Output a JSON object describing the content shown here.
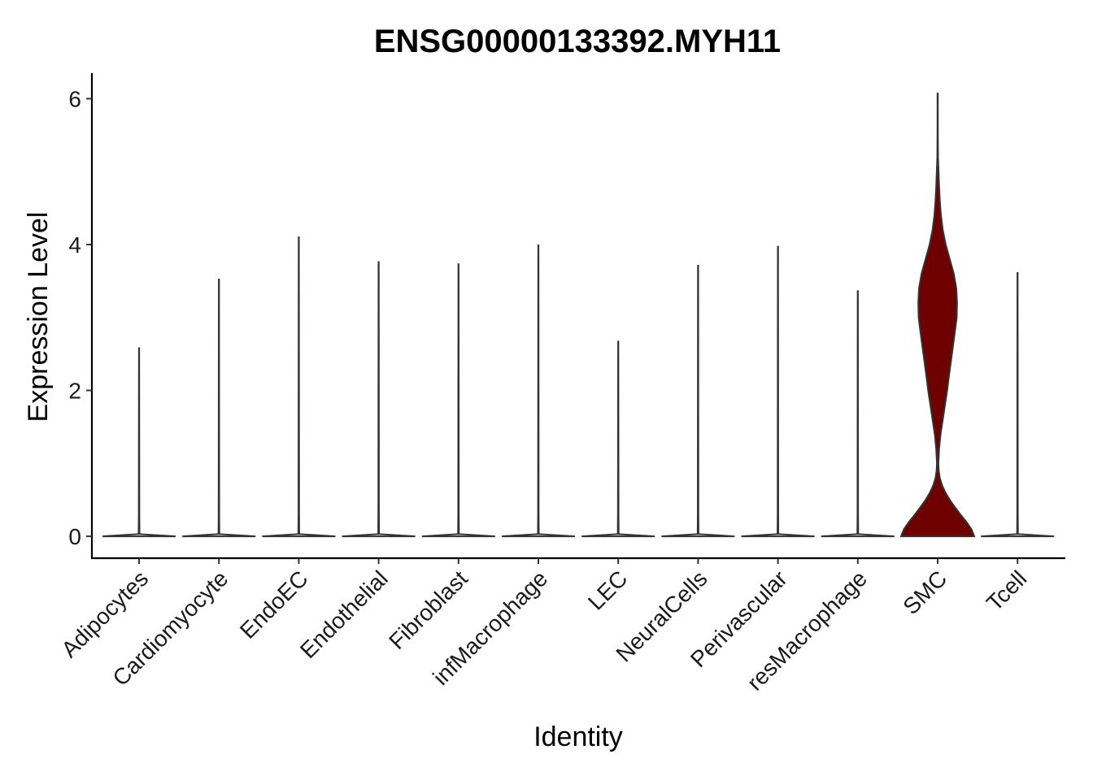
{
  "chart_data": {
    "type": "violin",
    "title": "ENSG00000133392.MYH11",
    "xlabel": "Identity",
    "ylabel": "Expression Level",
    "ylim": [
      -0.3,
      6.35
    ],
    "yticks": [
      0,
      2,
      4,
      6
    ],
    "grid": false,
    "legend": "none",
    "categories": [
      "Adipocytes",
      "Cardiomyocyte",
      "EndoEC",
      "Endothelial",
      "Fibroblast",
      "infMacrophage",
      "LEC",
      "NeuralCells",
      "Perivascular",
      "resMacrophage",
      "SMC",
      "Tcell"
    ],
    "max_values": [
      2.58,
      3.52,
      4.1,
      3.76,
      3.73,
      3.99,
      2.67,
      3.71,
      3.97,
      3.36,
      6.07,
      3.61
    ],
    "fill_colors": [
      "#ffffff",
      "#ffffff",
      "#ffffff",
      "#ffffff",
      "#ffffff",
      "#ffffff",
      "#ffffff",
      "#ffffff",
      "#ffffff",
      "#ffffff",
      "#6e0000",
      "#ffffff"
    ],
    "smc_density_profile": [
      [
        0.0,
        1.0
      ],
      [
        0.1,
        0.92
      ],
      [
        0.2,
        0.78
      ],
      [
        0.3,
        0.62
      ],
      [
        0.4,
        0.47
      ],
      [
        0.5,
        0.33
      ],
      [
        0.6,
        0.21
      ],
      [
        0.7,
        0.12
      ],
      [
        0.8,
        0.06
      ],
      [
        0.9,
        0.03
      ],
      [
        1.0,
        0.02
      ],
      [
        1.2,
        0.04
      ],
      [
        1.4,
        0.08
      ],
      [
        1.6,
        0.14
      ],
      [
        1.8,
        0.2
      ],
      [
        2.0,
        0.26
      ],
      [
        2.2,
        0.31
      ],
      [
        2.5,
        0.39
      ],
      [
        2.8,
        0.47
      ],
      [
        3.0,
        0.52
      ],
      [
        3.2,
        0.53
      ],
      [
        3.4,
        0.51
      ],
      [
        3.6,
        0.44
      ],
      [
        3.8,
        0.33
      ],
      [
        4.0,
        0.22
      ],
      [
        4.2,
        0.14
      ],
      [
        4.4,
        0.09
      ],
      [
        4.6,
        0.06
      ],
      [
        4.8,
        0.04
      ],
      [
        5.0,
        0.025
      ],
      [
        5.2,
        0.01
      ],
      [
        5.5,
        0.006
      ],
      [
        6.07,
        0.004
      ]
    ]
  }
}
